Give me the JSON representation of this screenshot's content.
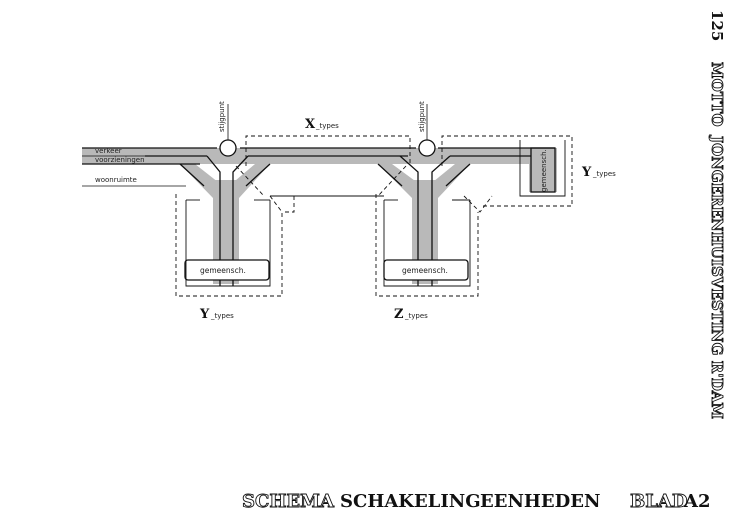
{
  "diagram": {
    "labels": {
      "verkeer": "verkeer",
      "voorzieningen": "voorzieningen",
      "woonruimte": "woonruimte",
      "stijgpunt_left": "stijgpunt",
      "stijgpunt_right": "stijgpunt",
      "gemeensch_left": "gemeensch.",
      "gemeensch_mid": "gemeensch.",
      "gemeensch_right": "gemeensch."
    },
    "types": {
      "x_letter": "X",
      "x_suffix": "_types",
      "y_left_letter": "Y",
      "y_left_suffix": "_types",
      "z_letter": "Z",
      "z_suffix": "_types",
      "y_right_letter": "Y",
      "y_right_suffix": "_types"
    }
  },
  "footer": {
    "schema": "SCHEMA",
    "schakeling": "SCHAKELING",
    "eenheden": "EENHEDEN",
    "blad": "BLAD",
    "sheet": "A2"
  },
  "side": {
    "title": "JONGERENHUISVESTING R'DAM",
    "motto": "MOTTO",
    "number": "125"
  },
  "colors": {
    "band": "#b9b9b9",
    "line": "#111111"
  }
}
